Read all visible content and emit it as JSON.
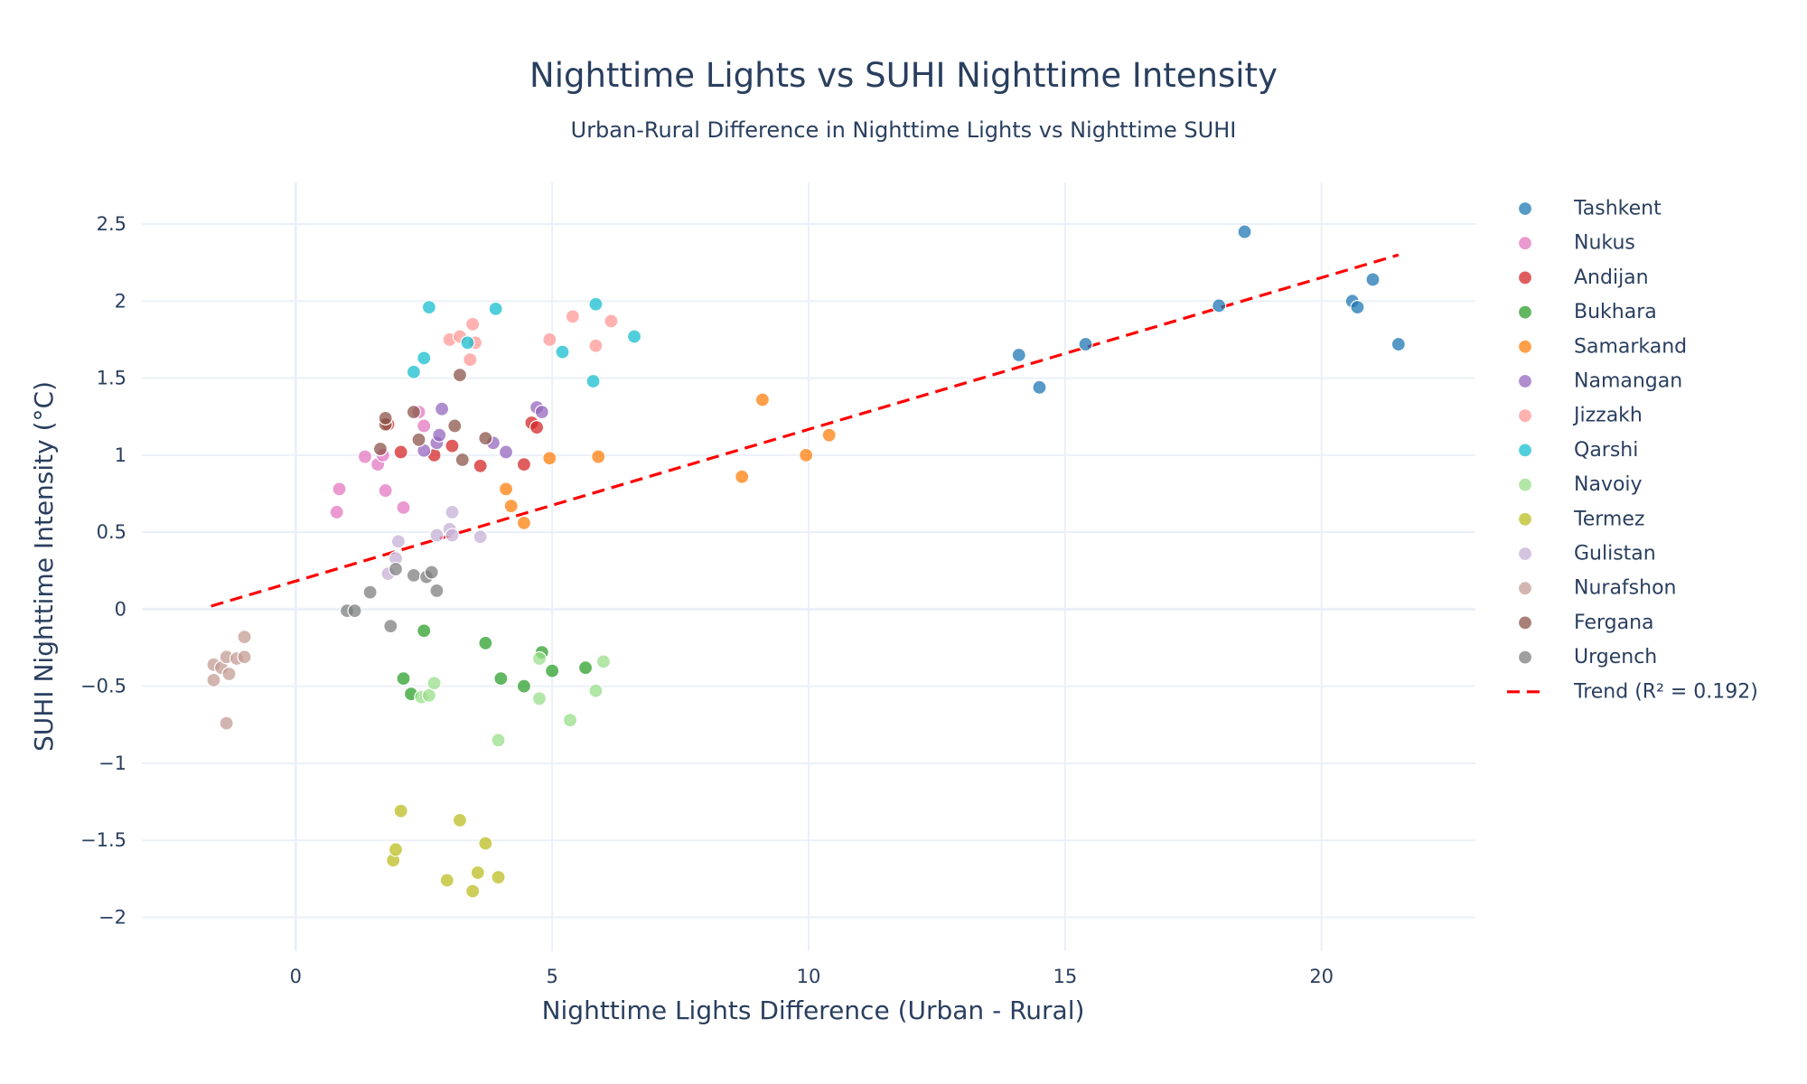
{
  "chart_data": {
    "type": "scatter",
    "title": "Nighttime Lights vs SUHI Nighttime Intensity",
    "subtitle": "Urban-Rural Difference in Nighttime Lights vs Nighttime SUHI",
    "xlabel": "Nighttime Lights Difference (Urban - Rural)",
    "ylabel": "SUHI Nighttime Intensity (°C)",
    "xlim": [
      -3,
      23
    ],
    "ylim": [
      -2.22,
      2.77
    ],
    "x_ticks": [
      0,
      5,
      10,
      15,
      20
    ],
    "x_tick_labels": [
      "0",
      "5",
      "10",
      "15",
      "20"
    ],
    "y_ticks": [
      -2,
      -1.5,
      -1,
      -0.5,
      0,
      0.5,
      1,
      1.5,
      2,
      2.5
    ],
    "y_tick_labels": [
      "−2",
      "−1.5",
      "−1",
      "−0.5",
      "0",
      "0.5",
      "1",
      "1.5",
      "2",
      "2.5"
    ],
    "grid": true,
    "legend_position": "right",
    "series": [
      {
        "name": "Tashkent",
        "color": "#1f77b4",
        "points": [
          [
            18.5,
            2.45
          ],
          [
            21.0,
            2.14
          ],
          [
            18.0,
            1.97
          ],
          [
            20.6,
            2.0
          ],
          [
            20.7,
            1.96
          ],
          [
            21.5,
            1.72
          ],
          [
            15.4,
            1.72
          ],
          [
            14.1,
            1.65
          ],
          [
            14.5,
            1.44
          ]
        ]
      },
      {
        "name": "Nukus",
        "color": "#e377c2",
        "points": [
          [
            0.8,
            0.63
          ],
          [
            0.85,
            0.78
          ],
          [
            1.35,
            0.99
          ],
          [
            1.6,
            0.94
          ],
          [
            1.7,
            1.0
          ],
          [
            1.75,
            0.77
          ],
          [
            2.1,
            0.66
          ],
          [
            2.4,
            1.28
          ],
          [
            2.5,
            1.19
          ]
        ]
      },
      {
        "name": "Andijan",
        "color": "#d62728",
        "points": [
          [
            1.8,
            1.2
          ],
          [
            2.05,
            1.02
          ],
          [
            2.7,
            1.0
          ],
          [
            3.05,
            1.06
          ],
          [
            3.6,
            0.93
          ],
          [
            4.45,
            0.94
          ],
          [
            4.6,
            1.21
          ],
          [
            4.7,
            1.18
          ]
        ]
      },
      {
        "name": "Bukhara",
        "color": "#2ca02c",
        "points": [
          [
            2.1,
            -0.45
          ],
          [
            2.25,
            -0.55
          ],
          [
            2.5,
            -0.14
          ],
          [
            3.7,
            -0.22
          ],
          [
            4.0,
            -0.45
          ],
          [
            4.45,
            -0.5
          ],
          [
            4.8,
            -0.28
          ],
          [
            5.0,
            -0.4
          ],
          [
            5.65,
            -0.38
          ]
        ]
      },
      {
        "name": "Samarkand",
        "color": "#ff7f0e",
        "points": [
          [
            4.1,
            0.78
          ],
          [
            4.2,
            0.67
          ],
          [
            4.45,
            0.56
          ],
          [
            4.95,
            0.98
          ],
          [
            5.9,
            0.99
          ],
          [
            8.7,
            0.86
          ],
          [
            9.1,
            1.36
          ],
          [
            9.95,
            1.0
          ],
          [
            10.4,
            1.13
          ]
        ]
      },
      {
        "name": "Namangan",
        "color": "#9467bd",
        "points": [
          [
            2.5,
            1.03
          ],
          [
            2.75,
            1.08
          ],
          [
            2.8,
            1.13
          ],
          [
            2.85,
            1.3
          ],
          [
            3.85,
            1.08
          ],
          [
            4.1,
            1.02
          ],
          [
            4.7,
            1.31
          ],
          [
            4.8,
            1.28
          ]
        ]
      },
      {
        "name": "Jizzakh",
        "color": "#ff9896",
        "points": [
          [
            3.0,
            1.75
          ],
          [
            3.2,
            1.77
          ],
          [
            3.4,
            1.62
          ],
          [
            3.45,
            1.85
          ],
          [
            3.5,
            1.73
          ],
          [
            4.95,
            1.75
          ],
          [
            5.4,
            1.9
          ],
          [
            5.85,
            1.71
          ],
          [
            6.15,
            1.87
          ]
        ]
      },
      {
        "name": "Qarshi",
        "color": "#17becf",
        "points": [
          [
            2.3,
            1.54
          ],
          [
            2.5,
            1.63
          ],
          [
            2.6,
            1.96
          ],
          [
            3.35,
            1.73
          ],
          [
            3.9,
            1.95
          ],
          [
            5.2,
            1.67
          ],
          [
            5.8,
            1.48
          ],
          [
            5.85,
            1.98
          ],
          [
            6.6,
            1.77
          ]
        ]
      },
      {
        "name": "Navoiy",
        "color": "#98df8a",
        "points": [
          [
            2.45,
            -0.57
          ],
          [
            2.6,
            -0.56
          ],
          [
            2.7,
            -0.48
          ],
          [
            3.95,
            -0.85
          ],
          [
            4.75,
            -0.32
          ],
          [
            4.75,
            -0.58
          ],
          [
            5.35,
            -0.72
          ],
          [
            5.85,
            -0.53
          ],
          [
            6.0,
            -0.34
          ]
        ]
      },
      {
        "name": "Termez",
        "color": "#bcbd22",
        "points": [
          [
            2.05,
            -1.31
          ],
          [
            1.9,
            -1.63
          ],
          [
            1.95,
            -1.56
          ],
          [
            2.95,
            -1.76
          ],
          [
            3.2,
            -1.37
          ],
          [
            3.45,
            -1.83
          ],
          [
            3.55,
            -1.71
          ],
          [
            3.7,
            -1.52
          ],
          [
            3.95,
            -1.74
          ]
        ]
      },
      {
        "name": "Gulistan",
        "color": "#c5b0d5",
        "points": [
          [
            1.8,
            0.23
          ],
          [
            1.95,
            0.33
          ],
          [
            2.0,
            0.44
          ],
          [
            2.75,
            0.48
          ],
          [
            3.0,
            0.52
          ],
          [
            3.05,
            0.48
          ],
          [
            3.05,
            0.63
          ],
          [
            3.6,
            0.47
          ]
        ]
      },
      {
        "name": "Nurafshon",
        "color": "#c49c94",
        "points": [
          [
            -1.6,
            -0.36
          ],
          [
            -1.6,
            -0.46
          ],
          [
            -1.45,
            -0.38
          ],
          [
            -1.35,
            -0.31
          ],
          [
            -1.3,
            -0.42
          ],
          [
            -1.15,
            -0.32
          ],
          [
            -1.0,
            -0.31
          ],
          [
            -1.0,
            -0.18
          ],
          [
            -1.35,
            -0.74
          ]
        ]
      },
      {
        "name": "Fergana",
        "color": "#8c564b",
        "points": [
          [
            1.65,
            1.04
          ],
          [
            1.75,
            1.2
          ],
          [
            1.75,
            1.24
          ],
          [
            2.3,
            1.28
          ],
          [
            2.4,
            1.1
          ],
          [
            3.1,
            1.19
          ],
          [
            3.2,
            1.52
          ],
          [
            3.25,
            0.97
          ],
          [
            3.7,
            1.11
          ]
        ]
      },
      {
        "name": "Urgench",
        "color": "#7f7f7f",
        "points": [
          [
            1.0,
            -0.01
          ],
          [
            1.15,
            -0.01
          ],
          [
            1.45,
            0.11
          ],
          [
            1.85,
            -0.11
          ],
          [
            1.95,
            0.26
          ],
          [
            2.3,
            0.22
          ],
          [
            2.55,
            0.21
          ],
          [
            2.65,
            0.24
          ],
          [
            2.75,
            0.12
          ]
        ]
      }
    ],
    "trend": {
      "name": "Trend (R² = 0.192)",
      "color": "#ff0000",
      "x": [
        -1.65,
        21.5
      ],
      "y": [
        0.02,
        2.3
      ]
    }
  }
}
